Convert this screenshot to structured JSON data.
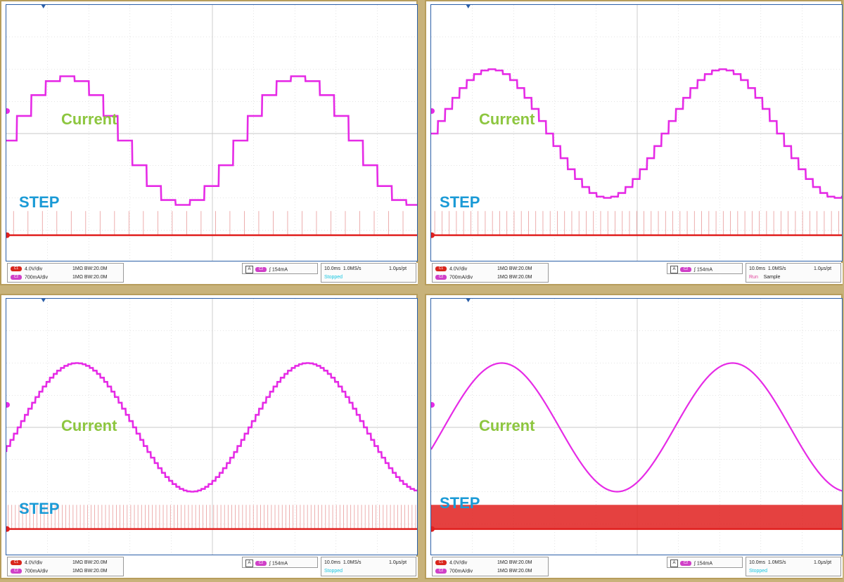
{
  "colors": {
    "current_trace": "#e62be6",
    "step_trace": "#e0201f",
    "grid": "#c9c9c9",
    "current_label": "#8dc63f",
    "step_label": "#1a9ad6",
    "ch1_chip": "#d9261c",
    "ch2_chip": "#d040c8"
  },
  "panels": [
    {
      "current_label": "Current",
      "step_label": "STEP",
      "ch1_scale": "4.0V/div",
      "ch2_scale": "700mA/div",
      "ch1_coupling": "1MΩ BW:20.0M",
      "ch2_coupling": "1MΩ BW:20.0M",
      "trigger_level": "154mA",
      "timebase": "10.0ms",
      "sample_rate": "1.0MS/s",
      "resolution": "1.0μs/pt",
      "acq_state": "Stopped",
      "acq_mode": ""
    },
    {
      "current_label": "Current",
      "step_label": "STEP",
      "ch1_scale": "4.0V/div",
      "ch2_scale": "700mA/div",
      "ch1_coupling": "1MΩ BW:20.0M",
      "ch2_coupling": "1MΩ BW:20.0M",
      "trigger_level": "154mA",
      "timebase": "10.0ms",
      "sample_rate": "1.0MS/s",
      "resolution": "1.0μs/pt",
      "acq_state": "Run",
      "acq_mode": "Sample"
    },
    {
      "current_label": "Current",
      "step_label": "STEP",
      "ch1_scale": "4.0V/div",
      "ch2_scale": "700mA/div",
      "ch1_coupling": "1MΩ BW:20.0M",
      "ch2_coupling": "1MΩ BW:20.0M",
      "trigger_level": "154mA",
      "timebase": "10.0ms",
      "sample_rate": "1.0MS/s",
      "resolution": "1.0μs/pt",
      "acq_state": "Stopped",
      "acq_mode": ""
    },
    {
      "current_label": "Current",
      "step_label": "STEP",
      "ch1_scale": "4.0V/div",
      "ch2_scale": "700mA/div",
      "ch1_coupling": "1MΩ BW:20.0M",
      "ch2_coupling": "1MΩ BW:20.0M",
      "trigger_level": "154mA",
      "timebase": "10.0ms",
      "sample_rate": "1.0MS/s",
      "resolution": "1.0μs/pt",
      "acq_state": "Stopped",
      "acq_mode": ""
    }
  ],
  "chart_data": [
    {
      "type": "line",
      "title": "",
      "x_unit": "ms",
      "x_range": [
        0,
        100
      ],
      "grid": true,
      "series": [
        {
          "name": "Current",
          "waveform": "stepped-sine",
          "steps_per_cycle": 16,
          "amplitude_div": 2.0,
          "period_ms": 56,
          "phase_deg": -5
        },
        {
          "name": "STEP",
          "waveform": "pulse-train",
          "pulses_per_cycle": 16
        }
      ]
    },
    {
      "type": "line",
      "title": "",
      "x_unit": "ms",
      "x_range": [
        0,
        100
      ],
      "grid": true,
      "series": [
        {
          "name": "Current",
          "waveform": "stepped-sine",
          "steps_per_cycle": 32,
          "amplitude_div": 2.0,
          "period_ms": 56,
          "phase_deg": -5
        },
        {
          "name": "STEP",
          "waveform": "pulse-train",
          "pulses_per_cycle": 32
        }
      ]
    },
    {
      "type": "line",
      "title": "",
      "x_unit": "ms",
      "x_range": [
        0,
        100
      ],
      "grid": true,
      "series": [
        {
          "name": "Current",
          "waveform": "stepped-sine",
          "steps_per_cycle": 64,
          "amplitude_div": 2.0,
          "period_ms": 56,
          "phase_deg": -20
        },
        {
          "name": "STEP",
          "waveform": "pulse-train",
          "pulses_per_cycle": 64
        }
      ]
    },
    {
      "type": "line",
      "title": "",
      "x_unit": "ms",
      "x_range": [
        0,
        100
      ],
      "grid": true,
      "series": [
        {
          "name": "Current",
          "waveform": "sine",
          "steps_per_cycle": 0,
          "amplitude_div": 2.0,
          "period_ms": 56,
          "phase_deg": -20
        },
        {
          "name": "STEP",
          "waveform": "pulse-train",
          "pulses_per_cycle": 256
        }
      ]
    }
  ]
}
